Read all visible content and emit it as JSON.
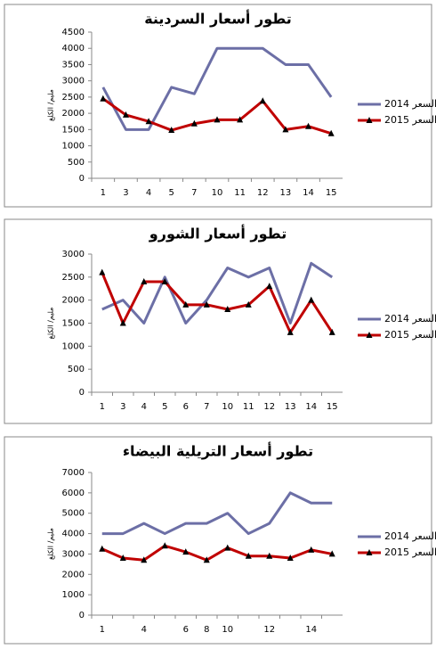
{
  "chart_data": [
    {
      "type": "line",
      "title": "تطور أسعار السردينة",
      "y_label": "مليم/ الكلغ",
      "categories": [
        "1",
        "3",
        "4",
        "5",
        "7",
        "10",
        "11",
        "12",
        "13",
        "14",
        "15"
      ],
      "ylim": [
        0,
        4500
      ],
      "yticks": [
        0,
        500,
        1000,
        1500,
        2000,
        2500,
        3000,
        3500,
        4000,
        4500
      ],
      "grid": false,
      "series": [
        {
          "name": "السعر 2014",
          "color": "#6c6fa6",
          "marker": "none",
          "values": [
            2800,
            1500,
            1500,
            2800,
            2600,
            4000,
            4000,
            4000,
            3500,
            3500,
            2500
          ]
        },
        {
          "name": "السعر 2015",
          "color": "#c00000",
          "marker": "triangle",
          "values": [
            2450,
            1950,
            1750,
            1480,
            1680,
            1800,
            1800,
            2380,
            1500,
            1600,
            1380
          ]
        }
      ]
    },
    {
      "type": "line",
      "title": "تطور أسعار الشورو",
      "y_label": "مليم/ الكلغ",
      "categories": [
        "1",
        "3",
        "4",
        "5",
        "6",
        "7",
        "10",
        "11",
        "12",
        "13",
        "14",
        "15"
      ],
      "ylim": [
        0,
        3000
      ],
      "yticks": [
        0,
        500,
        1000,
        1500,
        2000,
        2500,
        3000
      ],
      "grid": false,
      "series": [
        {
          "name": "السعر 2014",
          "color": "#6c6fa6",
          "marker": "none",
          "values": [
            1800,
            2000,
            1500,
            2500,
            1500,
            2000,
            2700,
            2500,
            2700,
            1500,
            2800,
            2500
          ]
        },
        {
          "name": "السعر 2015",
          "color": "#c00000",
          "marker": "triangle",
          "values": [
            2600,
            1500,
            2400,
            2400,
            1900,
            1900,
            1800,
            1900,
            2300,
            1300,
            2000,
            1300
          ]
        }
      ]
    },
    {
      "type": "line",
      "title": "تطور أسعار التريلية البيضاء",
      "y_label": "مليم/ الكلغ",
      "categories": [
        "1",
        null,
        "4",
        null,
        "6",
        "8",
        "10",
        null,
        "12",
        null,
        "14",
        null
      ],
      "ylim": [
        0,
        7000
      ],
      "yticks": [
        0,
        1000,
        2000,
        3000,
        4000,
        5000,
        6000,
        7000
      ],
      "grid": false,
      "series": [
        {
          "name": "السعر 2014",
          "color": "#6c6fa6",
          "marker": "none",
          "values": [
            4000,
            4000,
            4500,
            4000,
            4500,
            4500,
            5000,
            4000,
            4500,
            6000,
            5500,
            5500
          ]
        },
        {
          "name": "السعر 2015",
          "color": "#c00000",
          "marker": "triangle",
          "values": [
            3250,
            2800,
            2700,
            3400,
            3100,
            2700,
            3300,
            2900,
            2900,
            2800,
            3200,
            3000
          ]
        }
      ]
    }
  ]
}
